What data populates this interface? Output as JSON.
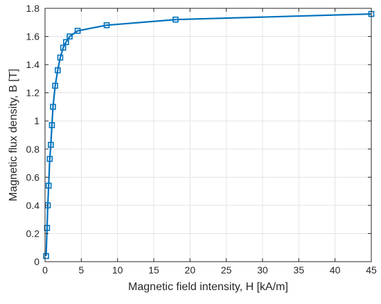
{
  "chart_data": {
    "type": "line",
    "title": "",
    "xlabel": "Magnetic field intensity, H [kA/m]",
    "ylabel": "Magnetic flux density, B [T]",
    "xlim": [
      0,
      45
    ],
    "ylim": [
      0,
      1.8
    ],
    "xticks": [
      0,
      5,
      10,
      15,
      20,
      25,
      30,
      35,
      40,
      45
    ],
    "yticks": [
      0,
      0.2,
      0.4,
      0.6,
      0.8,
      1,
      1.2,
      1.4,
      1.6,
      1.8
    ],
    "grid": true,
    "legend": "none",
    "series_color": "#0072BD",
    "grid_color": "#e3e3e3",
    "axis_color": "#262626",
    "marker": "square",
    "series": [
      {
        "x": [
          0.15,
          0.28,
          0.38,
          0.5,
          0.65,
          0.8,
          0.95,
          1.1,
          1.4,
          1.75,
          2.1,
          2.5,
          2.9,
          3.4,
          4.5,
          8.5,
          18,
          45
        ],
        "y": [
          0.04,
          0.24,
          0.4,
          0.54,
          0.73,
          0.83,
          0.97,
          1.1,
          1.25,
          1.36,
          1.45,
          1.52,
          1.56,
          1.6,
          1.64,
          1.68,
          1.72,
          1.76
        ]
      }
    ]
  }
}
